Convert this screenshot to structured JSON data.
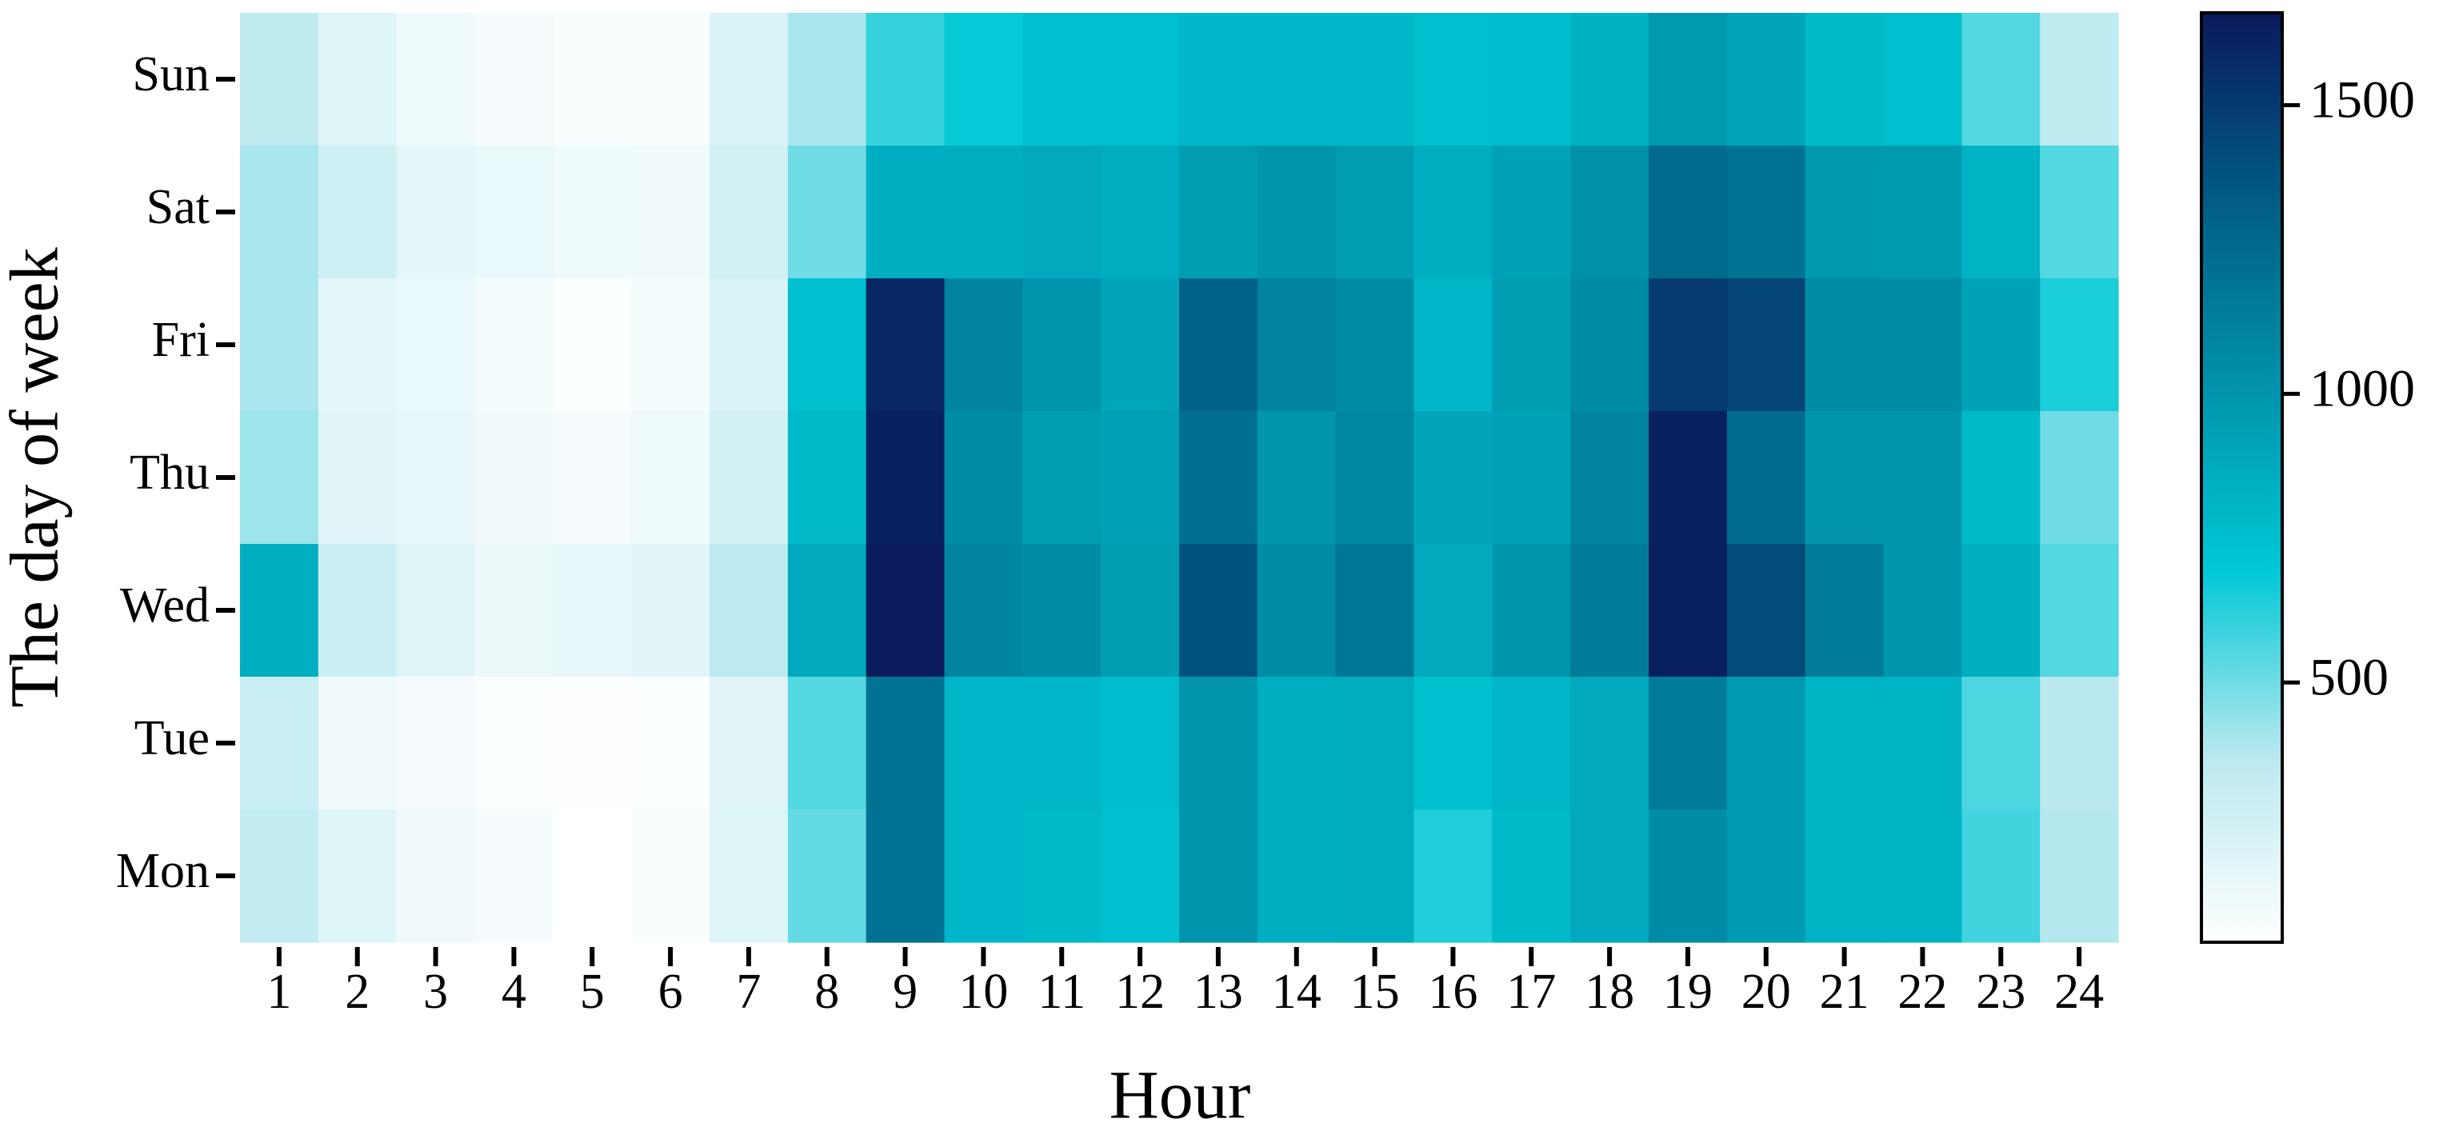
{
  "chart_data": {
    "type": "heatmap",
    "x_label": "Hour",
    "y_label": "The day of week",
    "x": [
      1,
      2,
      3,
      4,
      5,
      6,
      7,
      8,
      9,
      10,
      11,
      12,
      13,
      14,
      15,
      16,
      17,
      18,
      19,
      20,
      21,
      22,
      23,
      24
    ],
    "y": [
      "Sun",
      "Sat",
      "Fri",
      "Thu",
      "Wed",
      "Tue",
      "Mon"
    ],
    "z": [
      [
        350,
        200,
        130,
        90,
        80,
        80,
        220,
        400,
        600,
        680,
        750,
        750,
        800,
        800,
        790,
        740,
        760,
        830,
        970,
        900,
        780,
        750,
        550,
        350
      ],
      [
        400,
        280,
        180,
        150,
        130,
        110,
        260,
        500,
        850,
        850,
        880,
        860,
        950,
        1000,
        950,
        850,
        920,
        1020,
        1250,
        1200,
        980,
        970,
        820,
        550
      ],
      [
        400,
        180,
        150,
        100,
        70,
        100,
        220,
        750,
        1600,
        1100,
        1000,
        900,
        1300,
        1100,
        1060,
        800,
        950,
        1050,
        1500,
        1450,
        1050,
        1050,
        920,
        650
      ],
      [
        420,
        190,
        160,
        110,
        90,
        130,
        250,
        780,
        1620,
        1050,
        950,
        930,
        1220,
        1000,
        1080,
        900,
        920,
        1100,
        1620,
        1250,
        1000,
        1000,
        780,
        500
      ],
      [
        850,
        300,
        200,
        140,
        160,
        190,
        360,
        880,
        1650,
        1100,
        1050,
        950,
        1380,
        1050,
        1180,
        880,
        1000,
        1150,
        1630,
        1420,
        1150,
        1000,
        850,
        550
      ],
      [
        300,
        120,
        90,
        70,
        60,
        70,
        190,
        550,
        1200,
        800,
        800,
        760,
        1000,
        850,
        860,
        750,
        800,
        880,
        1150,
        960,
        820,
        820,
        560,
        370
      ],
      [
        330,
        200,
        120,
        90,
        50,
        80,
        200,
        520,
        1200,
        800,
        780,
        740,
        1000,
        850,
        860,
        640,
        780,
        880,
        1050,
        960,
        820,
        820,
        580,
        380
      ]
    ],
    "zlim": [
      50,
      1660
    ],
    "zticks": [
      500,
      1000,
      1500
    ],
    "colors": [
      "#ffffff",
      "#b9e9ef",
      "#00c8d6",
      "#0092aa",
      "#005c84",
      "#0a1a5a"
    ]
  }
}
